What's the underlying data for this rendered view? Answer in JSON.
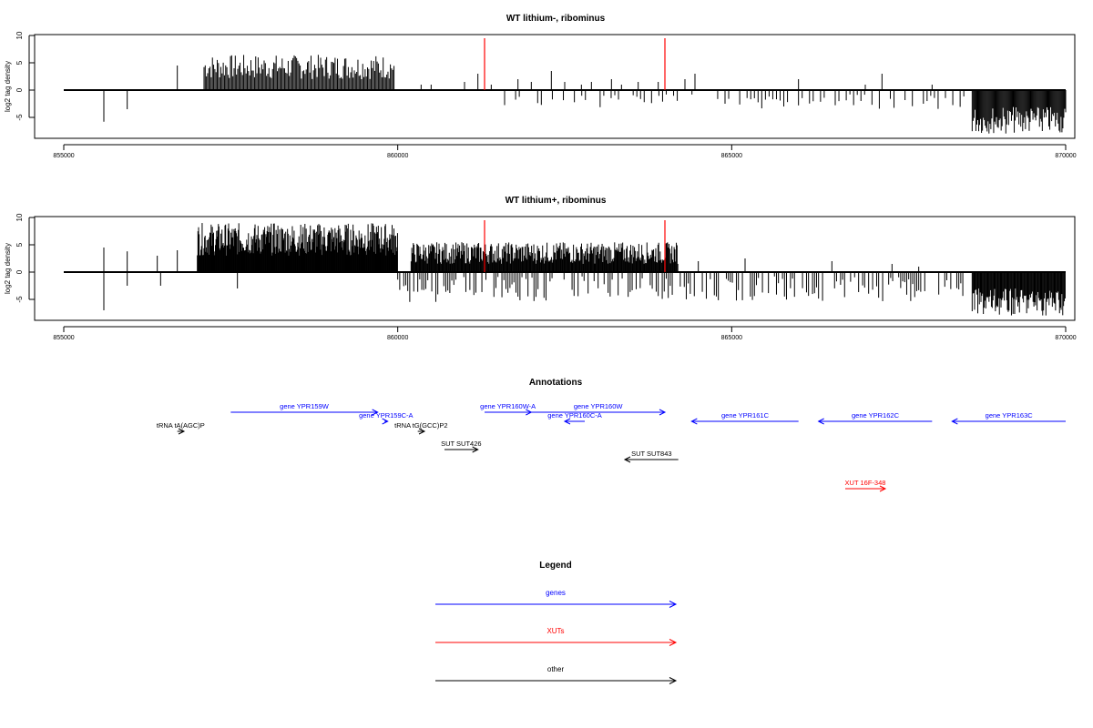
{
  "chart_data": [
    {
      "type": "bar",
      "title": "WT lithium-, ribominus",
      "ylabel": "log2 tag density",
      "xlim": [
        855000,
        870000
      ],
      "ylim": [
        -8,
        10
      ],
      "xticks": [
        "855000",
        "860000",
        "865000",
        "870000"
      ],
      "yticks": [
        "-5",
        "0",
        "5",
        "10"
      ],
      "markers": [
        861300,
        864000
      ],
      "marker_color": "#ff0000",
      "density_regions": [
        {
          "start": 857100,
          "end": 859950,
          "dir": 1,
          "min": 2.0,
          "max": 6.5,
          "step": 18
        },
        {
          "start": 868600,
          "end": 870000,
          "dir": -1,
          "min": 3.0,
          "max": 8.0,
          "step": 14
        }
      ],
      "isolated_bars": [
        [
          855600,
          -5.8
        ],
        [
          855950,
          -3.5
        ],
        [
          856700,
          4.5
        ],
        [
          860350,
          1.0
        ],
        [
          860500,
          1.0
        ],
        [
          861000,
          1.5
        ],
        [
          861200,
          3.0
        ],
        [
          861400,
          1.0
        ],
        [
          861800,
          2.0
        ],
        [
          862000,
          1.5
        ],
        [
          862300,
          3.5
        ],
        [
          862500,
          1.5
        ],
        [
          862750,
          1.0
        ],
        [
          862900,
          1.5
        ],
        [
          863200,
          2.0
        ],
        [
          863350,
          1.0
        ],
        [
          863600,
          1.5
        ],
        [
          863900,
          1.5
        ],
        [
          864300,
          2.0
        ],
        [
          864450,
          3.0
        ],
        [
          866000,
          2.0
        ],
        [
          867000,
          1.0
        ],
        [
          867250,
          3.0
        ],
        [
          868000,
          1.0
        ]
      ],
      "negative_zone": {
        "start": 861600,
        "end": 868500,
        "min": 0.8,
        "max": 3.5,
        "step": 55
      }
    },
    {
      "type": "bar",
      "title": "WT lithium+, ribominus",
      "ylabel": "log2 tag density",
      "xlim": [
        855000,
        870000
      ],
      "ylim": [
        -8,
        10
      ],
      "xticks": [
        "855000",
        "860000",
        "865000",
        "870000"
      ],
      "yticks": [
        "-5",
        "0",
        "5",
        "10"
      ],
      "markers": [
        861300,
        864000
      ],
      "marker_color": "#ff0000",
      "density_regions": [
        {
          "start": 857000,
          "end": 860000,
          "dir": 1,
          "min": 3.0,
          "max": 9.0,
          "step": 9
        },
        {
          "start": 860200,
          "end": 864200,
          "dir": 1,
          "min": 1.5,
          "max": 5.5,
          "step": 11
        },
        {
          "start": 868600,
          "end": 870000,
          "dir": -1,
          "min": 3.0,
          "max": 8.0,
          "step": 12
        }
      ],
      "isolated_bars": [
        [
          855600,
          4.5
        ],
        [
          855600,
          -7.0
        ],
        [
          855950,
          3.8
        ],
        [
          855950,
          -2.5
        ],
        [
          856400,
          3.0
        ],
        [
          856450,
          -2.5
        ],
        [
          856700,
          4.0
        ],
        [
          857600,
          -3.0
        ],
        [
          864500,
          2.0
        ],
        [
          865200,
          2.5
        ],
        [
          866500,
          2.0
        ],
        [
          867400,
          1.5
        ],
        [
          867800,
          1.0
        ]
      ],
      "negative_zone": {
        "start": 860000,
        "end": 868500,
        "min": 0.8,
        "max": 5.5,
        "step": 30
      }
    }
  ],
  "annotations": {
    "title": "Annotations",
    "xlim": [
      855000,
      870000
    ],
    "items": [
      {
        "label": "gene YPR159W",
        "color": "#0000ff",
        "start": 857500,
        "end": 859700,
        "dir": 1,
        "row": "gene_top"
      },
      {
        "label": "gene YPR159C-A",
        "color": "#0000ff",
        "start": 859800,
        "end": 859850,
        "dir": 1,
        "row": "gene_mid"
      },
      {
        "label": "gene YPR160W-A",
        "color": "#0000ff",
        "start": 861300,
        "end": 862000,
        "dir": 1,
        "row": "gene_top"
      },
      {
        "label": "gene YPR160W",
        "color": "#0000ff",
        "start": 862000,
        "end": 864000,
        "dir": 1,
        "row": "gene_top"
      },
      {
        "label": "gene YPR160C-A",
        "color": "#0000ff",
        "start": 862500,
        "end": 862800,
        "dir": -1,
        "row": "gene_mid"
      },
      {
        "label": "gene YPR161C",
        "color": "#0000ff",
        "start": 864400,
        "end": 866000,
        "dir": -1,
        "row": "gene_mid"
      },
      {
        "label": "gene YPR162C",
        "color": "#0000ff",
        "start": 866300,
        "end": 868000,
        "dir": -1,
        "row": "gene_mid"
      },
      {
        "label": "gene YPR163C",
        "color": "#0000ff",
        "start": 868300,
        "end": 870000,
        "dir": -1,
        "row": "gene_mid"
      },
      {
        "label": "tRNA tA(AGC)P",
        "color": "#000000",
        "start": 856700,
        "end": 856800,
        "dir": 1,
        "row": "trna"
      },
      {
        "label": "tRNA tG(GCC)P2",
        "color": "#000000",
        "start": 860300,
        "end": 860400,
        "dir": 1,
        "row": "trna"
      },
      {
        "label": "SUT SUT426",
        "color": "#000000",
        "start": 860700,
        "end": 861200,
        "dir": 1,
        "row": "sut1"
      },
      {
        "label": "SUT SUT843",
        "color": "#000000",
        "start": 863400,
        "end": 864200,
        "dir": -1,
        "row": "sut2"
      },
      {
        "label": "XUT 16F-348",
        "color": "#ff0000",
        "start": 866700,
        "end": 867300,
        "dir": 1,
        "row": "xut"
      }
    ]
  },
  "legend": {
    "title": "Legend",
    "items": [
      {
        "label": "genes",
        "color": "#0000ff"
      },
      {
        "label": "XUTs",
        "color": "#ff0000"
      },
      {
        "label": "other",
        "color": "#000000"
      }
    ]
  }
}
